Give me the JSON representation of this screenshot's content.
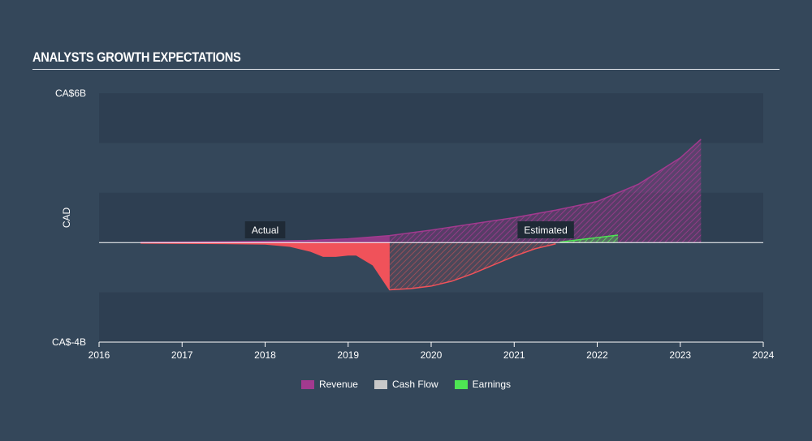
{
  "header": {
    "title": "ANALYSTS GROWTH EXPECTATIONS"
  },
  "chart_data": {
    "type": "area",
    "title": "ANALYSTS GROWTH EXPECTATIONS",
    "ylabel": "CAD",
    "ylim": [
      -4,
      6
    ],
    "xlim": [
      2016,
      2024
    ],
    "y_tick_labels": [
      "CA$6B",
      "CA$-4B"
    ],
    "x_ticks": [
      2016,
      2017,
      2018,
      2019,
      2020,
      2021,
      2022,
      2023,
      2024
    ],
    "annotations": [
      {
        "text": "Actual",
        "x": 2018.0
      },
      {
        "text": "Estimated",
        "x": 2021.38
      }
    ],
    "estimate_start": {
      "Revenue": 2019.5,
      "Cash Flow": 2019.5,
      "Earnings": 2021.55
    },
    "series": [
      {
        "name": "Revenue",
        "color": "#a23a8f",
        "x": [
          2016.5,
          2017.0,
          2017.5,
          2018.0,
          2018.5,
          2019.0,
          2019.5,
          2020.0,
          2020.5,
          2021.0,
          2021.5,
          2022.0,
          2022.5,
          2023.0,
          2023.25
        ],
        "y": [
          0.01,
          0.02,
          0.03,
          0.05,
          0.08,
          0.15,
          0.28,
          0.5,
          0.75,
          1.0,
          1.3,
          1.65,
          2.35,
          3.4,
          4.15
        ]
      },
      {
        "name": "Cash Flow",
        "color": "#f0525a",
        "x": [
          2016.5,
          2017.0,
          2017.5,
          2018.0,
          2018.3,
          2018.55,
          2018.7,
          2018.85,
          2019.0,
          2019.1,
          2019.3,
          2019.5,
          2019.75,
          2020.0,
          2020.25,
          2020.5,
          2020.75,
          2021.0,
          2021.25,
          2021.5
        ],
        "y": [
          -0.02,
          -0.03,
          -0.04,
          -0.06,
          -0.15,
          -0.35,
          -0.55,
          -0.55,
          -0.5,
          -0.5,
          -0.9,
          -1.9,
          -1.85,
          -1.75,
          -1.55,
          -1.25,
          -0.9,
          -0.55,
          -0.25,
          -0.05
        ]
      },
      {
        "name": "Earnings",
        "color": "#4ee553",
        "x": [
          2021.55,
          2021.8,
          2022.0,
          2022.25
        ],
        "y": [
          0.02,
          0.12,
          0.2,
          0.3
        ]
      }
    ],
    "legend": [
      "Revenue",
      "Cash Flow",
      "Earnings"
    ],
    "grid": true,
    "legend_position": "bottom-center"
  }
}
